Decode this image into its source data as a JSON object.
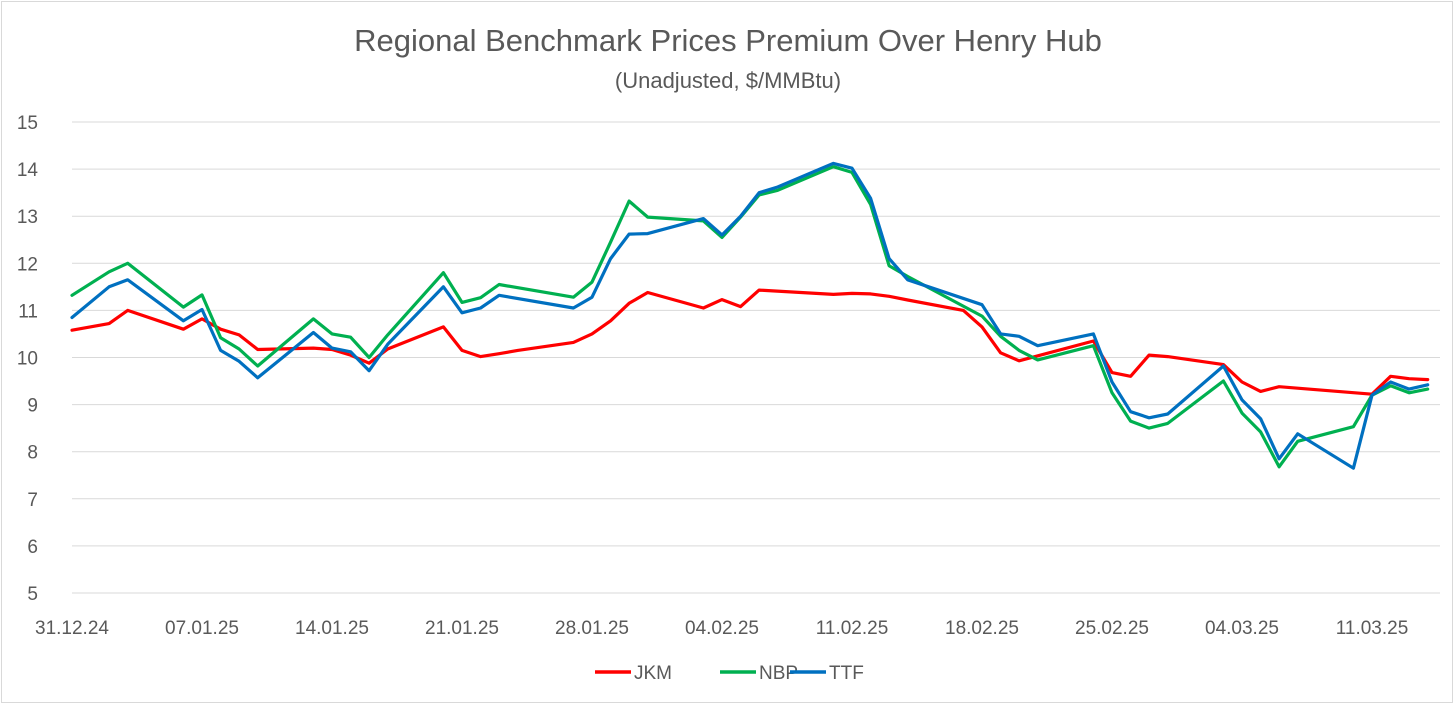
{
  "chart_data": {
    "type": "line",
    "title": "Regional Benchmark Prices Premium Over Henry Hub",
    "subtitle": "(Unadjusted, $/MMBtu)",
    "xlabel": "",
    "ylabel": "",
    "ylim": [
      5,
      15
    ],
    "yticks": [
      "5",
      "6",
      "7",
      "8",
      "9",
      "10",
      "11",
      "12",
      "13",
      "14",
      "15"
    ],
    "xticks": [
      "31.12.24",
      "07.01.25",
      "14.01.25",
      "21.01.25",
      "28.01.25",
      "04.02.25",
      "11.02.25",
      "18.02.25",
      "25.02.25",
      "04.03.25",
      "11.03.25"
    ],
    "grid": true,
    "legend_position": "bottom",
    "series": [
      {
        "name": "JKM",
        "color": "#ff0000",
        "points": [
          [
            "31.12.24",
            10.58
          ],
          [
            "02.01.25",
            10.72
          ],
          [
            "03.01.25",
            11.0
          ],
          [
            "06.01.25",
            10.6
          ],
          [
            "07.01.25",
            10.82
          ],
          [
            "08.01.25",
            10.6
          ],
          [
            "09.01.25",
            10.48
          ],
          [
            "10.01.25",
            10.17
          ],
          [
            "13.01.25",
            10.2
          ],
          [
            "14.01.25",
            10.17
          ],
          [
            "15.01.25",
            10.05
          ],
          [
            "16.01.25",
            9.88
          ],
          [
            "17.01.25",
            10.18
          ],
          [
            "20.01.25",
            10.65
          ],
          [
            "21.01.25",
            10.15
          ],
          [
            "22.01.25",
            10.02
          ],
          [
            "23.01.25",
            10.08
          ],
          [
            "24.01.25",
            10.15
          ],
          [
            "27.01.25",
            10.32
          ],
          [
            "28.01.25",
            10.5
          ],
          [
            "29.01.25",
            10.78
          ],
          [
            "30.01.25",
            11.15
          ],
          [
            "31.01.25",
            11.38
          ],
          [
            "03.02.25",
            11.05
          ],
          [
            "04.02.25",
            11.23
          ],
          [
            "05.02.25",
            11.08
          ],
          [
            "06.02.25",
            11.43
          ],
          [
            "10.02.25",
            11.34
          ],
          [
            "11.02.25",
            11.36
          ],
          [
            "12.02.25",
            11.35
          ],
          [
            "13.02.25",
            11.3
          ],
          [
            "14.02.25",
            11.22
          ],
          [
            "17.02.25",
            11.0
          ],
          [
            "18.02.25",
            10.65
          ],
          [
            "19.02.25",
            10.1
          ],
          [
            "20.02.25",
            9.93
          ],
          [
            "24.02.25",
            10.35
          ],
          [
            "25.02.25",
            9.68
          ],
          [
            "26.02.25",
            9.6
          ],
          [
            "27.02.25",
            10.05
          ],
          [
            "28.02.25",
            10.02
          ],
          [
            "03.03.25",
            9.85
          ],
          [
            "04.03.25",
            9.48
          ],
          [
            "05.03.25",
            9.28
          ],
          [
            "06.03.25",
            9.38
          ],
          [
            "11.03.25",
            9.22
          ],
          [
            "12.03.25",
            9.6
          ],
          [
            "13.03.25",
            9.55
          ],
          [
            "14.03.25",
            9.53
          ]
        ]
      },
      {
        "name": "NBP",
        "color": "#00b050",
        "points": [
          [
            "31.12.24",
            11.32
          ],
          [
            "02.01.25",
            11.82
          ],
          [
            "03.01.25",
            12.0
          ],
          [
            "06.01.25",
            11.07
          ],
          [
            "07.01.25",
            11.33
          ],
          [
            "08.01.25",
            10.42
          ],
          [
            "09.01.25",
            10.18
          ],
          [
            "10.01.25",
            9.82
          ],
          [
            "13.01.25",
            10.82
          ],
          [
            "14.01.25",
            10.5
          ],
          [
            "15.01.25",
            10.43
          ],
          [
            "16.01.25",
            10.0
          ],
          [
            "17.01.25",
            10.48
          ],
          [
            "20.01.25",
            11.8
          ],
          [
            "21.01.25",
            11.17
          ],
          [
            "22.01.25",
            11.27
          ],
          [
            "23.01.25",
            11.55
          ],
          [
            "27.01.25",
            11.28
          ],
          [
            "28.01.25",
            11.6
          ],
          [
            "29.01.25",
            12.45
          ],
          [
            "30.01.25",
            13.32
          ],
          [
            "31.01.25",
            12.98
          ],
          [
            "03.02.25",
            12.9
          ],
          [
            "04.02.25",
            12.55
          ],
          [
            "05.02.25",
            12.98
          ],
          [
            "06.02.25",
            13.45
          ],
          [
            "07.02.25",
            13.55
          ],
          [
            "10.02.25",
            14.05
          ],
          [
            "11.02.25",
            13.93
          ],
          [
            "12.02.25",
            13.25
          ],
          [
            "13.02.25",
            11.95
          ],
          [
            "14.02.25",
            11.72
          ],
          [
            "18.02.25",
            10.88
          ],
          [
            "19.02.25",
            10.45
          ],
          [
            "20.02.25",
            10.15
          ],
          [
            "21.02.25",
            9.95
          ],
          [
            "24.02.25",
            10.25
          ],
          [
            "25.02.25",
            9.25
          ],
          [
            "26.02.25",
            8.65
          ],
          [
            "27.02.25",
            8.5
          ],
          [
            "28.02.25",
            8.6
          ],
          [
            "03.03.25",
            9.5
          ],
          [
            "04.03.25",
            8.82
          ],
          [
            "05.03.25",
            8.42
          ],
          [
            "06.03.25",
            7.68
          ],
          [
            "07.03.25",
            8.22
          ],
          [
            "10.03.25",
            8.53
          ],
          [
            "11.03.25",
            9.2
          ],
          [
            "12.03.25",
            9.4
          ],
          [
            "13.03.25",
            9.25
          ],
          [
            "14.03.25",
            9.33
          ]
        ]
      },
      {
        "name": "TTF",
        "color": "#0070c0",
        "points": [
          [
            "31.12.24",
            10.85
          ],
          [
            "02.01.25",
            11.5
          ],
          [
            "03.01.25",
            11.65
          ],
          [
            "06.01.25",
            10.78
          ],
          [
            "07.01.25",
            11.02
          ],
          [
            "08.01.25",
            10.15
          ],
          [
            "09.01.25",
            9.92
          ],
          [
            "10.01.25",
            9.57
          ],
          [
            "13.01.25",
            10.53
          ],
          [
            "14.01.25",
            10.2
          ],
          [
            "15.01.25",
            10.12
          ],
          [
            "16.01.25",
            9.72
          ],
          [
            "17.01.25",
            10.28
          ],
          [
            "20.01.25",
            11.5
          ],
          [
            "21.01.25",
            10.95
          ],
          [
            "22.01.25",
            11.05
          ],
          [
            "23.01.25",
            11.32
          ],
          [
            "27.01.25",
            11.05
          ],
          [
            "28.01.25",
            11.28
          ],
          [
            "29.01.25",
            12.1
          ],
          [
            "30.01.25",
            12.62
          ],
          [
            "31.01.25",
            12.63
          ],
          [
            "03.02.25",
            12.95
          ],
          [
            "04.02.25",
            12.6
          ],
          [
            "05.02.25",
            13.0
          ],
          [
            "06.02.25",
            13.5
          ],
          [
            "07.02.25",
            13.62
          ],
          [
            "10.02.25",
            14.12
          ],
          [
            "11.02.25",
            14.02
          ],
          [
            "12.02.25",
            13.38
          ],
          [
            "13.02.25",
            12.1
          ],
          [
            "14.02.25",
            11.65
          ],
          [
            "18.02.25",
            11.12
          ],
          [
            "19.02.25",
            10.5
          ],
          [
            "20.02.25",
            10.45
          ],
          [
            "21.02.25",
            10.25
          ],
          [
            "24.02.25",
            10.5
          ],
          [
            "25.02.25",
            9.48
          ],
          [
            "26.02.25",
            8.85
          ],
          [
            "27.02.25",
            8.72
          ],
          [
            "28.02.25",
            8.8
          ],
          [
            "03.03.25",
            9.82
          ],
          [
            "04.03.25",
            9.1
          ],
          [
            "05.03.25",
            8.7
          ],
          [
            "06.03.25",
            7.85
          ],
          [
            "07.03.25",
            8.38
          ],
          [
            "10.03.25",
            7.65
          ],
          [
            "11.03.25",
            9.2
          ],
          [
            "12.03.25",
            9.48
          ],
          [
            "13.03.25",
            9.33
          ],
          [
            "14.03.25",
            9.42
          ]
        ]
      }
    ]
  }
}
